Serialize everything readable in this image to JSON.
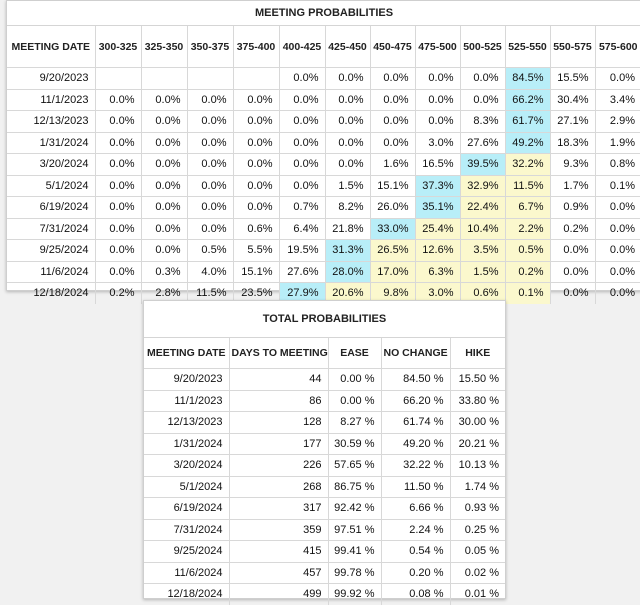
{
  "meeting_probabilities": {
    "title": "MEETING PROBABILITIES",
    "headers": [
      "MEETING DATE",
      "300-325",
      "325-350",
      "350-375",
      "375-400",
      "400-425",
      "425-450",
      "450-475",
      "475-500",
      "500-525",
      "525-550",
      "550-575",
      "575-600"
    ],
    "rows": [
      {
        "cells": [
          "9/20/2023",
          "",
          "",
          "",
          "",
          "0.0%",
          "0.0%",
          "0.0%",
          "0.0%",
          "0.0%",
          "84.5%",
          "15.5%",
          "0.0%"
        ],
        "hl": {
          "10": "b"
        }
      },
      {
        "cells": [
          "11/1/2023",
          "0.0%",
          "0.0%",
          "0.0%",
          "0.0%",
          "0.0%",
          "0.0%",
          "0.0%",
          "0.0%",
          "0.0%",
          "66.2%",
          "30.4%",
          "3.4%"
        ],
        "hl": {
          "10": "b"
        }
      },
      {
        "cells": [
          "12/13/2023",
          "0.0%",
          "0.0%",
          "0.0%",
          "0.0%",
          "0.0%",
          "0.0%",
          "0.0%",
          "0.0%",
          "8.3%",
          "61.7%",
          "27.1%",
          "2.9%"
        ],
        "hl": {
          "10": "b"
        }
      },
      {
        "cells": [
          "1/31/2024",
          "0.0%",
          "0.0%",
          "0.0%",
          "0.0%",
          "0.0%",
          "0.0%",
          "0.0%",
          "3.0%",
          "27.6%",
          "49.2%",
          "18.3%",
          "1.9%"
        ],
        "hl": {
          "10": "b"
        }
      },
      {
        "cells": [
          "3/20/2024",
          "0.0%",
          "0.0%",
          "0.0%",
          "0.0%",
          "0.0%",
          "0.0%",
          "1.6%",
          "16.5%",
          "39.5%",
          "32.2%",
          "9.3%",
          "0.8%"
        ],
        "hl": {
          "9": "b",
          "10": "y"
        }
      },
      {
        "cells": [
          "5/1/2024",
          "0.0%",
          "0.0%",
          "0.0%",
          "0.0%",
          "0.0%",
          "1.5%",
          "15.1%",
          "37.3%",
          "32.9%",
          "11.5%",
          "1.7%",
          "0.1%"
        ],
        "hl": {
          "8": "b",
          "9": "y",
          "10": "y"
        }
      },
      {
        "cells": [
          "6/19/2024",
          "0.0%",
          "0.0%",
          "0.0%",
          "0.0%",
          "0.7%",
          "8.2%",
          "26.0%",
          "35.1%",
          "22.4%",
          "6.7%",
          "0.9%",
          "0.0%"
        ],
        "hl": {
          "8": "b",
          "9": "y",
          "10": "y"
        }
      },
      {
        "cells": [
          "7/31/2024",
          "0.0%",
          "0.0%",
          "0.0%",
          "0.6%",
          "6.4%",
          "21.8%",
          "33.0%",
          "25.4%",
          "10.4%",
          "2.2%",
          "0.2%",
          "0.0%"
        ],
        "hl": {
          "7": "b",
          "8": "y",
          "9": "y",
          "10": "y"
        }
      },
      {
        "cells": [
          "9/25/2024",
          "0.0%",
          "0.0%",
          "0.5%",
          "5.5%",
          "19.5%",
          "31.3%",
          "26.5%",
          "12.6%",
          "3.5%",
          "0.5%",
          "0.0%",
          "0.0%"
        ],
        "hl": {
          "6": "b",
          "7": "y",
          "8": "y",
          "9": "y",
          "10": "y"
        }
      },
      {
        "cells": [
          "11/6/2024",
          "0.0%",
          "0.3%",
          "4.0%",
          "15.1%",
          "27.6%",
          "28.0%",
          "17.0%",
          "6.3%",
          "1.5%",
          "0.2%",
          "0.0%",
          "0.0%"
        ],
        "hl": {
          "6": "b",
          "7": "y",
          "8": "y",
          "9": "y",
          "10": "y"
        }
      },
      {
        "cells": [
          "12/18/2024",
          "0.2%",
          "2.8%",
          "11.5%",
          "23.5%",
          "27.9%",
          "20.6%",
          "9.8%",
          "3.0%",
          "0.6%",
          "0.1%",
          "0.0%",
          "0.0%"
        ],
        "hl": {
          "5": "b",
          "6": "y",
          "7": "y",
          "8": "y",
          "9": "y",
          "10": "y"
        }
      }
    ]
  },
  "total_probabilities": {
    "title": "TOTAL PROBABILITIES",
    "headers": [
      "MEETING DATE",
      "DAYS TO MEETING",
      "EASE",
      "NO CHANGE",
      "HIKE"
    ],
    "rows": [
      [
        "9/20/2023",
        "44",
        "0.00 %",
        "84.50 %",
        "15.50 %"
      ],
      [
        "11/1/2023",
        "86",
        "0.00 %",
        "66.20 %",
        "33.80 %"
      ],
      [
        "12/13/2023",
        "128",
        "8.27 %",
        "61.74 %",
        "30.00 %"
      ],
      [
        "1/31/2024",
        "177",
        "30.59 %",
        "49.20 %",
        "20.21 %"
      ],
      [
        "3/20/2024",
        "226",
        "57.65 %",
        "32.22 %",
        "10.13 %"
      ],
      [
        "5/1/2024",
        "268",
        "86.75 %",
        "11.50 %",
        "1.74 %"
      ],
      [
        "6/19/2024",
        "317",
        "92.42 %",
        "6.66 %",
        "0.93 %"
      ],
      [
        "7/31/2024",
        "359",
        "97.51 %",
        "2.24 %",
        "0.25 %"
      ],
      [
        "9/25/2024",
        "415",
        "99.41 %",
        "0.54 %",
        "0.05 %"
      ],
      [
        "11/6/2024",
        "457",
        "99.78 %",
        "0.20 %",
        "0.02 %"
      ],
      [
        "12/18/2024",
        "499",
        "99.92 %",
        "0.08 %",
        "0.01 %"
      ]
    ]
  },
  "colors": {
    "highlight_blue": "#b8eef8",
    "highlight_yellow": "#fbf8cd"
  }
}
